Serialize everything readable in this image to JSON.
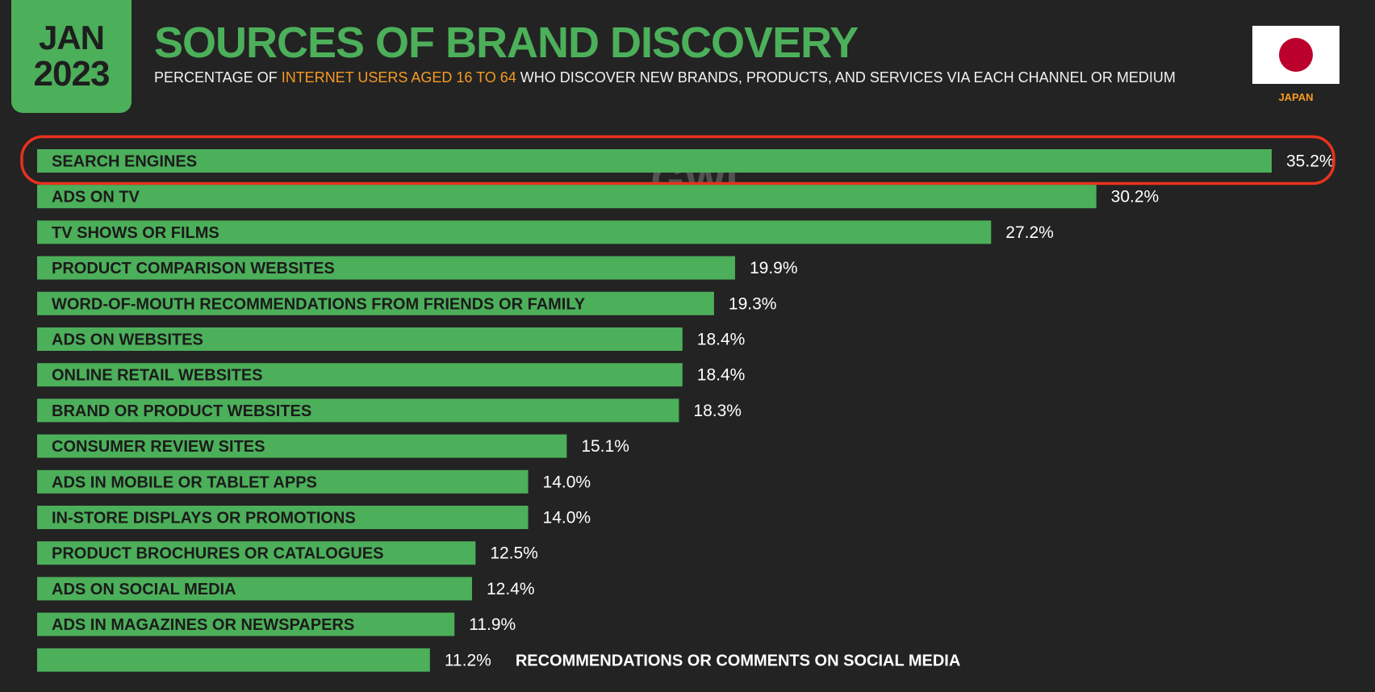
{
  "header": {
    "date_month": "JAN",
    "date_year": "2023",
    "title": "SOURCES OF BRAND DISCOVERY",
    "subtitle_pre": "PERCENTAGE OF ",
    "subtitle_highlight": "INTERNET USERS AGED 16 TO 64",
    "subtitle_post": " WHO DISCOVER NEW BRANDS, PRODUCTS, AND SERVICES VIA EACH CHANNEL OR MEDIUM"
  },
  "flag": {
    "country": "JAPAN",
    "icon": "japan-flag-icon"
  },
  "watermark": "GWI.",
  "colors": {
    "background": "#232323",
    "bar": "#4caf5a",
    "accent": "#f59a23",
    "highlight_outline": "#e8321e",
    "title": "#4caf5a"
  },
  "chart_data": {
    "type": "bar",
    "orientation": "horizontal",
    "categories": [
      "SEARCH ENGINES",
      "ADS ON TV",
      "TV SHOWS OR FILMS",
      "PRODUCT COMPARISON WEBSITES",
      "WORD-OF-MOUTH RECOMMENDATIONS FROM FRIENDS OR FAMILY",
      "ADS ON WEBSITES",
      "ONLINE RETAIL WEBSITES",
      "BRAND OR PRODUCT WEBSITES",
      "CONSUMER REVIEW SITES",
      "ADS IN MOBILE OR TABLET APPS",
      "IN-STORE DISPLAYS OR PROMOTIONS",
      "PRODUCT BROCHURES OR CATALOGUES",
      "ADS ON SOCIAL MEDIA",
      "ADS IN MAGAZINES OR NEWSPAPERS",
      "RECOMMENDATIONS OR COMMENTS ON SOCIAL MEDIA"
    ],
    "values": [
      35.2,
      30.2,
      27.2,
      19.9,
      19.3,
      18.4,
      18.4,
      18.3,
      15.1,
      14.0,
      14.0,
      12.5,
      12.4,
      11.9,
      11.2
    ],
    "value_labels": [
      "35.2%",
      "30.2%",
      "27.2%",
      "19.9%",
      "19.3%",
      "18.4%",
      "18.4%",
      "18.3%",
      "15.1%",
      "14.0%",
      "14.0%",
      "12.5%",
      "12.4%",
      "11.9%",
      "11.2%"
    ],
    "unit": "%",
    "highlighted_category": "SEARCH ENGINES",
    "label_outside": [
      "RECOMMENDATIONS OR COMMENTS ON SOCIAL MEDIA"
    ],
    "grid": false,
    "legend": "none"
  }
}
